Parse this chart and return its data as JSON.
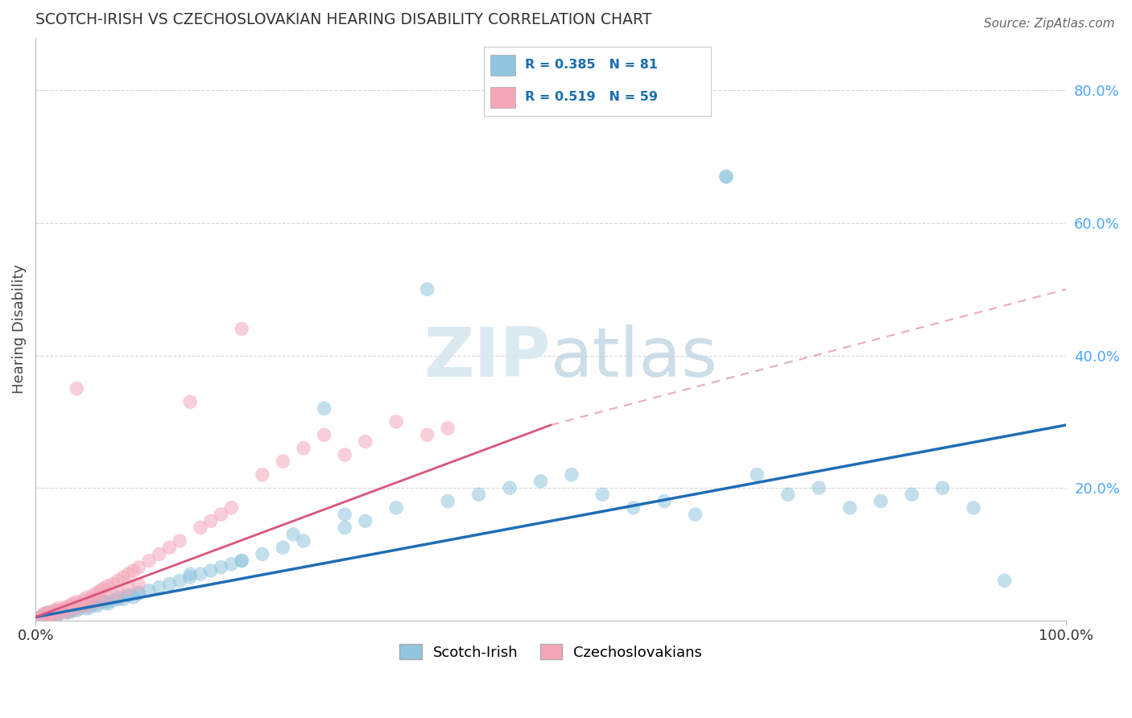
{
  "title": "SCOTCH-IRISH VS CZECHOSLOVAKIAN HEARING DISABILITY CORRELATION CHART",
  "source": "Source: ZipAtlas.com",
  "ylabel": "Hearing Disability",
  "right_yticks": [
    "80.0%",
    "60.0%",
    "40.0%",
    "20.0%"
  ],
  "right_ytick_vals": [
    0.8,
    0.6,
    0.4,
    0.2
  ],
  "xlim": [
    0.0,
    1.0
  ],
  "ylim": [
    0.0,
    0.88
  ],
  "legend_blue_R": "R = 0.385",
  "legend_blue_N": "N = 81",
  "legend_pink_R": "R = 0.519",
  "legend_pink_N": "N = 59",
  "legend_label_blue": "Scotch-Irish",
  "legend_label_pink": "Czechoslovakians",
  "color_blue": "#92c5de",
  "color_blue_line": "#1f6db5",
  "color_pink": "#f4a6b8",
  "color_pink_line": "#d9557a",
  "color_grid": "#cccccc",
  "color_title": "#333333",
  "color_right_axis": "#4da6ff",
  "background_color": "#ffffff",
  "blue_scatter_x": [
    0.005,
    0.008,
    0.01,
    0.012,
    0.015,
    0.018,
    0.02,
    0.022,
    0.025,
    0.028,
    0.03,
    0.033,
    0.036,
    0.04,
    0.043,
    0.046,
    0.05,
    0.053,
    0.056,
    0.06,
    0.063,
    0.066,
    0.07,
    0.075,
    0.08,
    0.085,
    0.09,
    0.095,
    0.1,
    0.11,
    0.12,
    0.13,
    0.14,
    0.15,
    0.16,
    0.17,
    0.18,
    0.19,
    0.2,
    0.22,
    0.24,
    0.26,
    0.28,
    0.3,
    0.32,
    0.35,
    0.38,
    0.4,
    0.43,
    0.46,
    0.49,
    0.52,
    0.55,
    0.58,
    0.61,
    0.64,
    0.67,
    0.7,
    0.73,
    0.76,
    0.79,
    0.82,
    0.85,
    0.88,
    0.91,
    0.94,
    0.01,
    0.02,
    0.03,
    0.04,
    0.05,
    0.06,
    0.07,
    0.08,
    0.09,
    0.1,
    0.15,
    0.2,
    0.25,
    0.3,
    0.67
  ],
  "blue_scatter_y": [
    0.005,
    0.008,
    0.01,
    0.012,
    0.005,
    0.01,
    0.015,
    0.008,
    0.012,
    0.015,
    0.018,
    0.012,
    0.015,
    0.02,
    0.018,
    0.022,
    0.025,
    0.02,
    0.028,
    0.025,
    0.03,
    0.028,
    0.025,
    0.03,
    0.035,
    0.032,
    0.038,
    0.035,
    0.04,
    0.045,
    0.05,
    0.055,
    0.06,
    0.065,
    0.07,
    0.075,
    0.08,
    0.085,
    0.09,
    0.1,
    0.11,
    0.12,
    0.32,
    0.14,
    0.15,
    0.17,
    0.5,
    0.18,
    0.19,
    0.2,
    0.21,
    0.22,
    0.19,
    0.17,
    0.18,
    0.16,
    0.67,
    0.22,
    0.19,
    0.2,
    0.17,
    0.18,
    0.19,
    0.2,
    0.17,
    0.06,
    0.005,
    0.008,
    0.012,
    0.015,
    0.018,
    0.022,
    0.028,
    0.032,
    0.038,
    0.042,
    0.07,
    0.09,
    0.13,
    0.16,
    0.67
  ],
  "pink_scatter_x": [
    0.005,
    0.008,
    0.01,
    0.012,
    0.015,
    0.018,
    0.02,
    0.022,
    0.025,
    0.028,
    0.03,
    0.033,
    0.036,
    0.04,
    0.043,
    0.046,
    0.05,
    0.053,
    0.056,
    0.06,
    0.063,
    0.066,
    0.07,
    0.075,
    0.08,
    0.085,
    0.09,
    0.095,
    0.1,
    0.11,
    0.12,
    0.13,
    0.14,
    0.15,
    0.16,
    0.17,
    0.18,
    0.19,
    0.2,
    0.22,
    0.24,
    0.26,
    0.28,
    0.3,
    0.32,
    0.35,
    0.38,
    0.4,
    0.01,
    0.02,
    0.03,
    0.04,
    0.05,
    0.06,
    0.07,
    0.08,
    0.09,
    0.1,
    0.04
  ],
  "pink_scatter_y": [
    0.005,
    0.01,
    0.008,
    0.012,
    0.01,
    0.015,
    0.012,
    0.018,
    0.015,
    0.02,
    0.018,
    0.022,
    0.025,
    0.028,
    0.025,
    0.03,
    0.035,
    0.032,
    0.038,
    0.042,
    0.045,
    0.048,
    0.052,
    0.055,
    0.06,
    0.065,
    0.07,
    0.075,
    0.08,
    0.09,
    0.1,
    0.11,
    0.12,
    0.33,
    0.14,
    0.15,
    0.16,
    0.17,
    0.44,
    0.22,
    0.24,
    0.26,
    0.28,
    0.25,
    0.27,
    0.3,
    0.28,
    0.29,
    0.005,
    0.008,
    0.012,
    0.018,
    0.022,
    0.028,
    0.035,
    0.042,
    0.048,
    0.055,
    0.35
  ]
}
